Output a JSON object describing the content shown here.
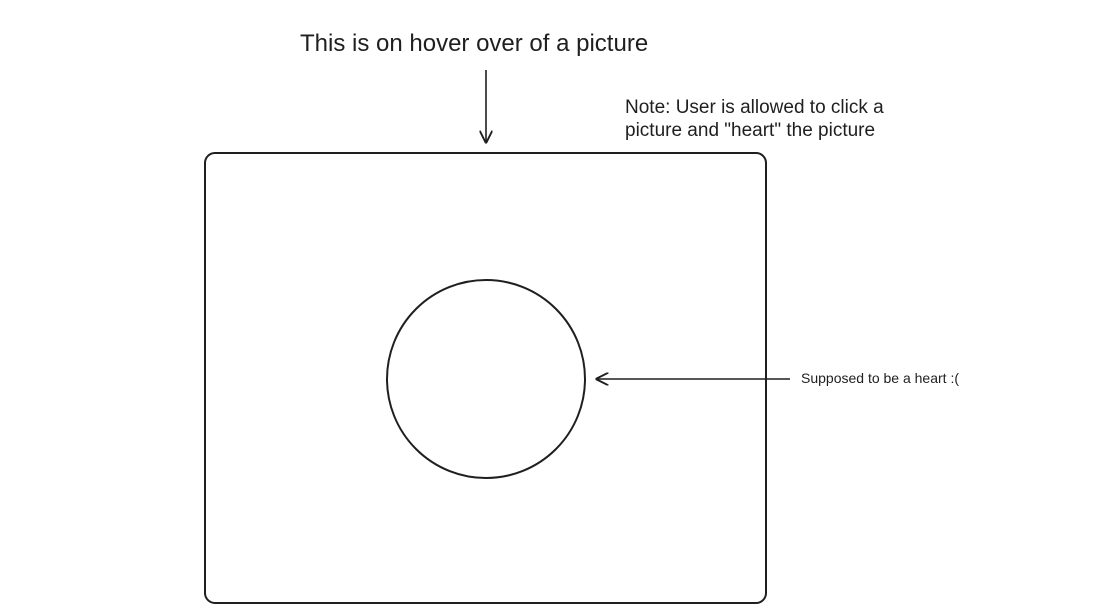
{
  "title": "This is on hover over of a picture",
  "note": {
    "line1": "Note: User is allowed to click a",
    "line2": "picture and \"heart\" the picture"
  },
  "heart_label": "Supposed to be a heart :(",
  "colors": {
    "stroke": "#1f1f1f",
    "background": "#ffffff"
  }
}
